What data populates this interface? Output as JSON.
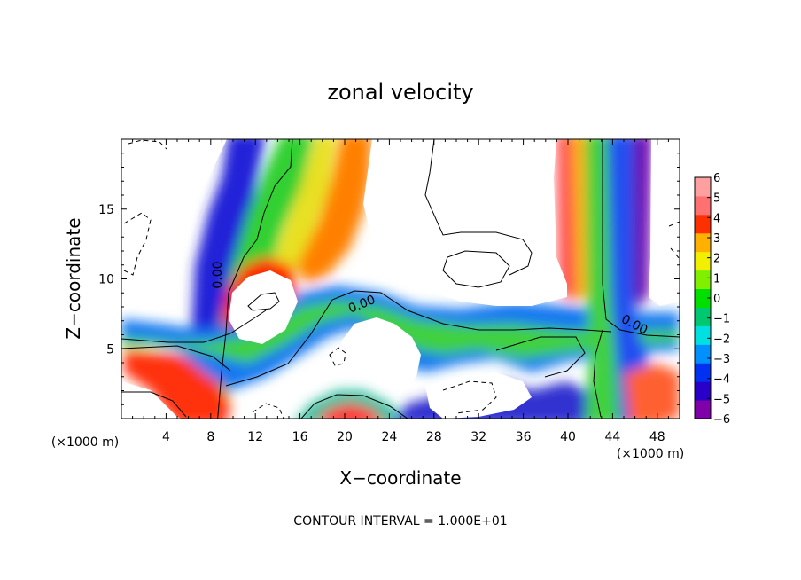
{
  "chart_data": {
    "type": "heatmap",
    "title": "zonal velocity",
    "xlabel": "X−coordinate",
    "ylabel": "Z−coordinate",
    "x_unit_left": "(×1000 m)",
    "x_unit_right": "(×1000 m)",
    "footer": "CONTOUR INTERVAL = 1.000E+01",
    "xlim": [
      0,
      50
    ],
    "ylim": [
      0,
      20
    ],
    "x_ticks": [
      4,
      8,
      12,
      16,
      20,
      24,
      28,
      32,
      36,
      40,
      44,
      48
    ],
    "y_ticks": [
      5,
      10,
      15
    ],
    "contour_labels": [
      "0.00",
      "0.00",
      "0.00"
    ],
    "colorbar": {
      "ticks": [
        6,
        5,
        4,
        3,
        2,
        1,
        0,
        -1,
        -2,
        -3,
        -4,
        -5,
        -6
      ],
      "tick_labels": [
        "6",
        "5",
        "4",
        "3",
        "2",
        "1",
        "0",
        "−1",
        "−2",
        "−3",
        "−4",
        "−5",
        "−6"
      ],
      "range": [
        -6,
        6
      ],
      "colors": [
        "#7f00a8",
        "#2a00c8",
        "#0030f0",
        "#0090ff",
        "#00e0e0",
        "#00c870",
        "#00e000",
        "#80f000",
        "#f0f000",
        "#ffb000",
        "#ff3000",
        "#ff7070",
        "#ffa0a0"
      ]
    }
  }
}
